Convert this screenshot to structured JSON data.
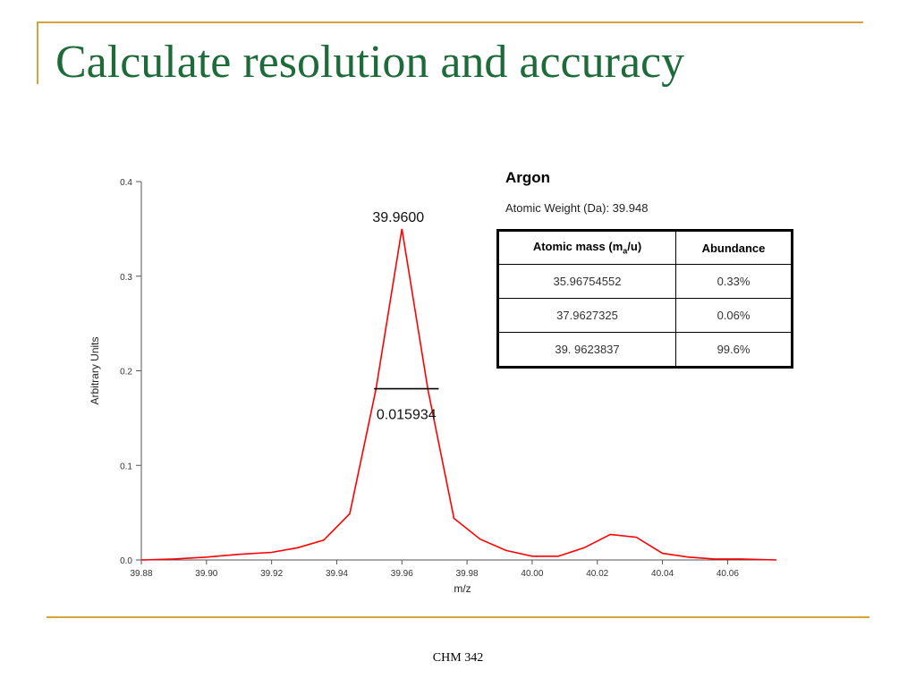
{
  "slide": {
    "title": "Calculate resolution and accuracy",
    "footer": "CHM 342"
  },
  "element_info": {
    "name": "Argon",
    "atomic_weight_label": "Atomic Weight (Da): 39.948",
    "table": {
      "headers": {
        "mass_pre": "Atomic mass (m",
        "mass_sub": "a",
        "mass_post": "/u)",
        "abundance": "Abundance"
      },
      "rows": [
        {
          "mass": "35.96754552",
          "abundance": "0.33%"
        },
        {
          "mass": "37.9627325",
          "abundance": "0.06%"
        },
        {
          "mass": "39. 9623837",
          "abundance": "99.6%"
        }
      ]
    }
  },
  "colors": {
    "accent_rule": "#d4a43a",
    "title_green": "#1e6b3a",
    "series_red": "#ff0000"
  },
  "chart_data": {
    "type": "line",
    "title": "",
    "xlabel": "m/z",
    "ylabel": "Arbitrary Units",
    "xlim": [
      39.88,
      40.075
    ],
    "ylim": [
      0,
      0.4
    ],
    "x_ticks": [
      "39.88",
      "39.90",
      "39.92",
      "39.94",
      "39.96",
      "39.98",
      "40.00",
      "40.02",
      "40.04",
      "40.06"
    ],
    "y_ticks": [
      "0.0",
      "0.1",
      "0.2",
      "0.3",
      "0.4"
    ],
    "series": [
      {
        "color": "#ff0000",
        "x": [
          39.88,
          39.89,
          39.9,
          39.91,
          39.92,
          39.928,
          39.936,
          39.944,
          39.952,
          39.96,
          39.968,
          39.976,
          39.984,
          39.992,
          40.0,
          40.008,
          40.016,
          40.024,
          40.032,
          40.04,
          40.048,
          40.056,
          40.064,
          40.075
        ],
        "y": [
          0.0,
          0.001,
          0.003,
          0.006,
          0.008,
          0.013,
          0.021,
          0.049,
          0.18,
          0.35,
          0.18,
          0.044,
          0.022,
          0.01,
          0.004,
          0.004,
          0.013,
          0.027,
          0.024,
          0.007,
          0.003,
          0.001,
          0.001,
          0.0
        ]
      }
    ],
    "annotations": [
      {
        "text": "39.9600",
        "x": 39.96,
        "y": 0.35,
        "kind": "peak-label"
      },
      {
        "text": "0.015934",
        "x1": 39.952,
        "x2": 39.968,
        "y": 0.181,
        "kind": "fwhm-bar"
      }
    ]
  }
}
